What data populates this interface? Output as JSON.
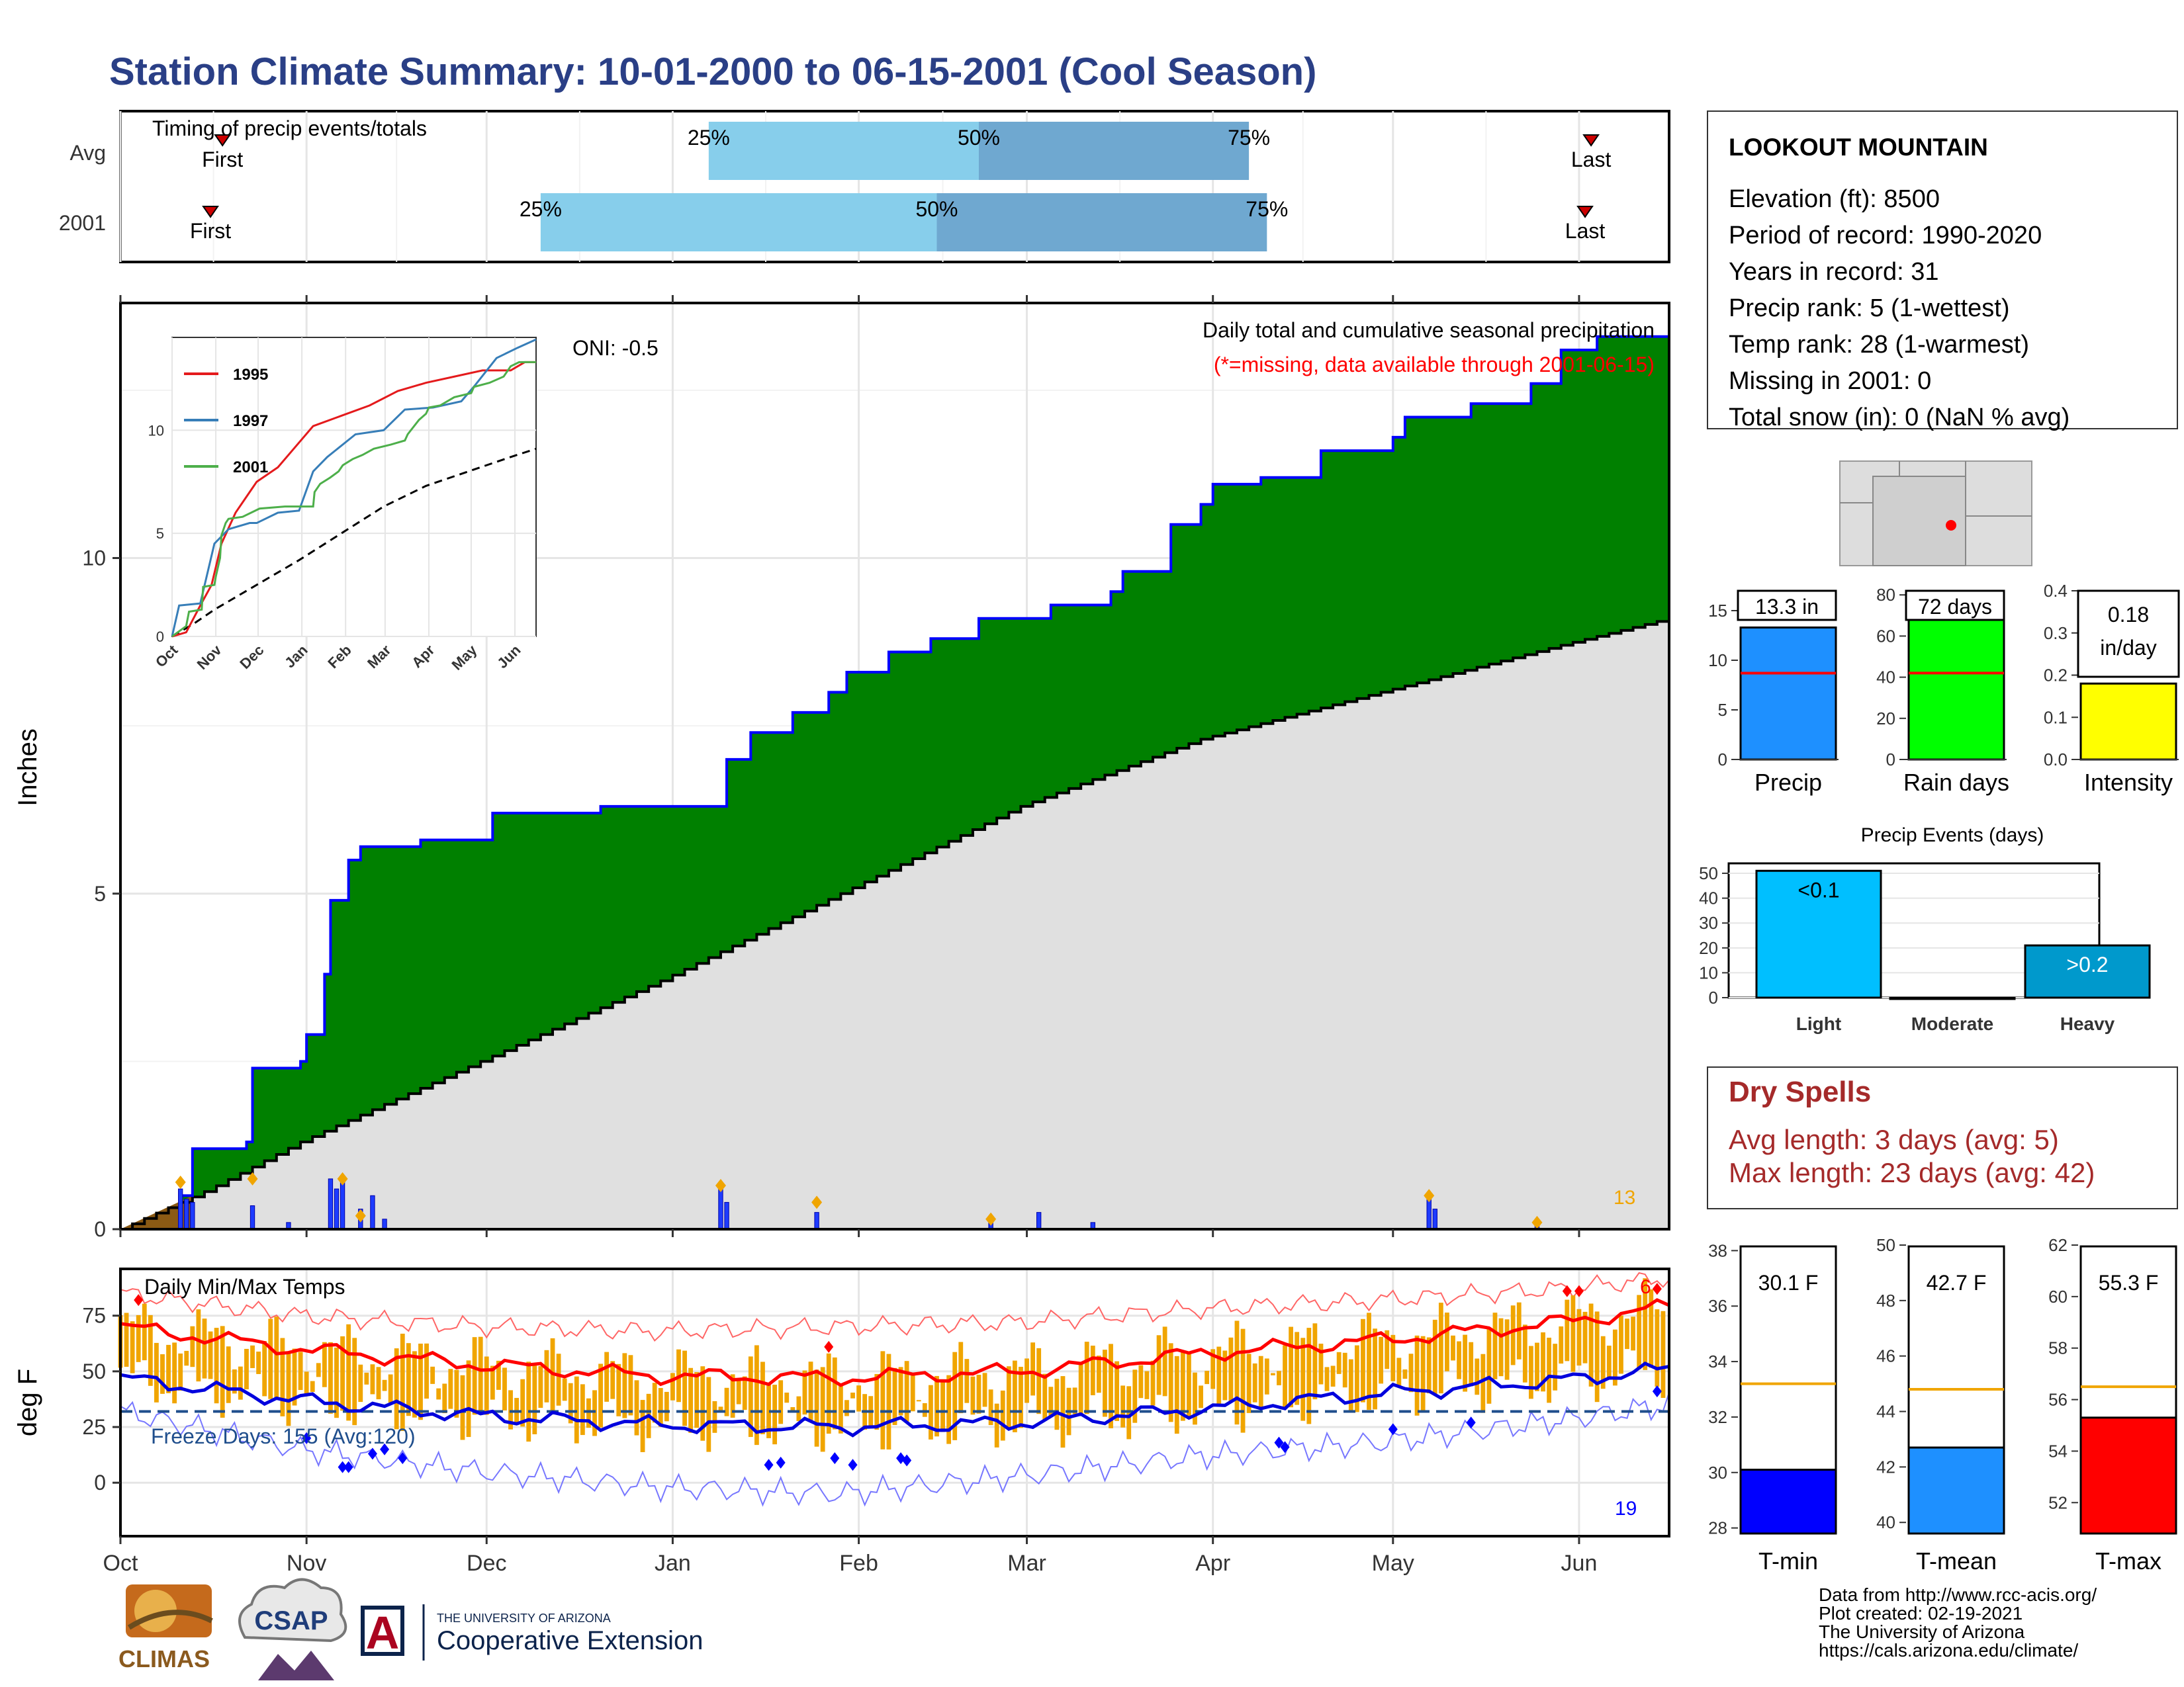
{
  "title": "Station Climate Summary: 10-01-2000 to 06-15-2001 (Cool Season)",
  "colors": {
    "title": "#2a3f86",
    "precip_fill": "#008000",
    "precip_line": "#0000ff",
    "avg_fill": "#e0e0e0",
    "bar_light": "#87ceeb",
    "bar_dark": "#6fa8d0",
    "orange": "#f0a500",
    "red": "#ff0000",
    "blue": "#0000ff",
    "dry_text": "#a52a2a"
  },
  "months": [
    "Oct",
    "Nov",
    "Dec",
    "Jan",
    "Feb",
    "Mar",
    "Apr",
    "May",
    "Jun"
  ],
  "timing": {
    "title": "Timing of precip events/totals",
    "rows": [
      "Avg",
      "2001"
    ],
    "first_label": "First",
    "last_label": "Last",
    "pct_labels": [
      "25%",
      "50%",
      "75%"
    ],
    "avg": {
      "first_day": 17,
      "p25": 98,
      "p50": 143,
      "p75": 188,
      "last_day": 245
    },
    "y2001": {
      "first_day": 15,
      "p25": 70,
      "p50": 136,
      "p75": 191,
      "last_day": 244
    }
  },
  "main": {
    "ylabel": "Inches",
    "oni": "ONI: -0.5",
    "note1": "Daily total and cumulative seasonal precipitation",
    "note2": "(*=missing, data available through 2001-06-15)",
    "extreme_count": "13",
    "yticks": [
      "0",
      "5",
      "10"
    ]
  },
  "inset": {
    "months": [
      "Oct",
      "Nov",
      "Dec",
      "Jan",
      "Feb",
      "Mar",
      "Apr",
      "May",
      "Jun"
    ],
    "yticks": [
      "0",
      "5",
      "10"
    ],
    "legend": [
      "1995",
      "1997",
      "2001"
    ]
  },
  "chart_data": [
    {
      "type": "area",
      "title": "Daily total and cumulative seasonal precipitation",
      "ylabel": "Inches",
      "ylim": [
        0,
        13.8
      ],
      "series": [
        {
          "name": "2001 cumulative",
          "points": [
            [
              0,
              0
            ],
            [
              10,
              0.5
            ],
            [
              12,
              1.2
            ],
            [
              21,
              1.3
            ],
            [
              22,
              2.4
            ],
            [
              30,
              2.5
            ],
            [
              31,
              2.9
            ],
            [
              34,
              3.8
            ],
            [
              35,
              4.9
            ],
            [
              38,
              5.5
            ],
            [
              40,
              5.7
            ],
            [
              50,
              5.8
            ],
            [
              62,
              6.2
            ],
            [
              80,
              6.3
            ],
            [
              100,
              6.3
            ],
            [
              101,
              7.0
            ],
            [
              105,
              7.4
            ],
            [
              112,
              7.7
            ],
            [
              118,
              8.0
            ],
            [
              121,
              8.3
            ],
            [
              128,
              8.6
            ],
            [
              135,
              8.8
            ],
            [
              143,
              9.1
            ],
            [
              155,
              9.3
            ],
            [
              165,
              9.5
            ],
            [
              167,
              9.8
            ],
            [
              175,
              10.5
            ],
            [
              180,
              10.8
            ],
            [
              182,
              11.1
            ],
            [
              190,
              11.2
            ],
            [
              200,
              11.6
            ],
            [
              212,
              11.8
            ],
            [
              214,
              12.1
            ],
            [
              225,
              12.3
            ],
            [
              235,
              12.6
            ],
            [
              240,
              13.1
            ],
            [
              246,
              13.3
            ],
            [
              258,
              13.3
            ]
          ]
        },
        {
          "name": "Average cumulative",
          "points": [
            [
              0,
              0
            ],
            [
              15,
              0.6
            ],
            [
              30,
              1.3
            ],
            [
              60,
              2.5
            ],
            [
              90,
              3.7
            ],
            [
              120,
              5.0
            ],
            [
              150,
              6.3
            ],
            [
              180,
              7.3
            ],
            [
              210,
              8.0
            ],
            [
              240,
              8.7
            ],
            [
              258,
              9.1
            ]
          ]
        }
      ],
      "daily_bars": [
        [
          10,
          0.6
        ],
        [
          11,
          0.45
        ],
        [
          12,
          0.4
        ],
        [
          22,
          0.35
        ],
        [
          28,
          0.1
        ],
        [
          35,
          0.75
        ],
        [
          36,
          0.6
        ],
        [
          37,
          0.75
        ],
        [
          40,
          0.3
        ],
        [
          42,
          0.5
        ],
        [
          44,
          0.15
        ],
        [
          100,
          0.6
        ],
        [
          101,
          0.4
        ],
        [
          116,
          0.25
        ],
        [
          145,
          0.15
        ],
        [
          153,
          0.25
        ],
        [
          162,
          0.1
        ],
        [
          218,
          0.5
        ],
        [
          219,
          0.3
        ],
        [
          236,
          0.1
        ]
      ],
      "extreme_count": 13
    },
    {
      "type": "bar",
      "title": "Daily Min/Max Temps",
      "ylabel": "deg F",
      "ylim": [
        -15,
        95
      ],
      "freeze_days": 155,
      "freeze_days_avg": 120,
      "series": [
        {
          "name": "Avg max",
          "points": [
            [
              0,
              70
            ],
            [
              30,
              60
            ],
            [
              60,
              53
            ],
            [
              90,
              48
            ],
            [
              120,
              47
            ],
            [
              150,
              50
            ],
            [
              180,
              58
            ],
            [
              210,
              64
            ],
            [
              240,
              72
            ],
            [
              258,
              79
            ]
          ]
        },
        {
          "name": "Avg min",
          "points": [
            [
              0,
              47
            ],
            [
              30,
              37
            ],
            [
              60,
              30
            ],
            [
              90,
              26
            ],
            [
              120,
              25
            ],
            [
              150,
              27
            ],
            [
              180,
              33
            ],
            [
              210,
              40
            ],
            [
              240,
              46
            ],
            [
              258,
              51
            ]
          ]
        },
        {
          "name": "Record max",
          "points": [
            [
              0,
              85
            ],
            [
              30,
              75
            ],
            [
              60,
              70
            ],
            [
              90,
              68
            ],
            [
              120,
              70
            ],
            [
              150,
              72
            ],
            [
              180,
              78
            ],
            [
              210,
              82
            ],
            [
              240,
              87
            ],
            [
              258,
              92
            ]
          ]
        },
        {
          "name": "Record min",
          "points": [
            [
              0,
              32
            ],
            [
              30,
              15
            ],
            [
              60,
              5
            ],
            [
              90,
              -2
            ],
            [
              120,
              -5
            ],
            [
              150,
              3
            ],
            [
              180,
              12
            ],
            [
              210,
              18
            ],
            [
              240,
              28
            ],
            [
              258,
              35
            ]
          ]
        }
      ],
      "counts": {
        "hot": 6,
        "cold": 19
      }
    },
    {
      "type": "bar",
      "categories": [
        "Precip",
        "Rain days",
        "Intensity"
      ],
      "values": [
        13.3,
        72,
        0.18
      ],
      "labels": [
        "13.3 in",
        "72 days",
        "0.18 in/day"
      ],
      "averages": [
        8.7,
        42,
        0.2
      ],
      "ylims": [
        [
          0,
          17
        ],
        [
          0,
          82
        ],
        [
          0,
          0.4
        ]
      ]
    },
    {
      "type": "bar",
      "title": "Precip Events (days)",
      "categories": [
        "Light",
        "Moderate",
        "Heavy"
      ],
      "values": [
        51,
        0,
        21
      ],
      "labels": [
        "<0.1",
        "",
        ">0.2"
      ],
      "ylim": [
        0,
        54
      ]
    },
    {
      "type": "bar",
      "categories": [
        "T-min",
        "T-mean",
        "T-max"
      ],
      "values": [
        30.1,
        42.7,
        55.3
      ],
      "labels": [
        "30.1 F",
        "42.7 F",
        "55.3 F"
      ],
      "averages": [
        33.2,
        44.8,
        56.5
      ],
      "ylims": [
        [
          27.8,
          38.2
        ],
        [
          39.6,
          50
        ],
        [
          50.8,
          62
        ]
      ]
    }
  ],
  "temps": {
    "title": "Daily Min/Max Temps",
    "ylabel": "deg F",
    "freeze": "Freeze Days: 155 (Avg:120)",
    "hot_count": "6",
    "cold_count": "19",
    "yticks": [
      "0",
      "25",
      "50",
      "75"
    ]
  },
  "station": {
    "name": "LOOKOUT MOUNTAIN",
    "lines": [
      "Elevation (ft): 8500",
      "Period of record: 1990-2020",
      "Years in record: 31",
      "Precip rank: 5 (1-wettest)",
      "Temp rank: 28 (1-warmest)",
      "Missing in 2001: 0",
      "Total snow (in): 0 (NaN % avg)"
    ]
  },
  "summary_bars": {
    "labels": [
      "Precip",
      "Rain days",
      "Intensity"
    ],
    "values": [
      "13.3 in",
      "72 days",
      "0.18"
    ],
    "intensity_unit": "in/day",
    "precip_ticks": [
      "0",
      "5",
      "10",
      "15"
    ],
    "rain_ticks": [
      "0",
      "20",
      "40",
      "60",
      "80"
    ],
    "int_ticks": [
      "0.0",
      "0.1",
      "0.2",
      "0.3",
      "0.4"
    ]
  },
  "events": {
    "title": "Precip Events (days)",
    "labels": [
      "Light",
      "Moderate",
      "Heavy"
    ],
    "values": [
      "<0.1",
      ">0.2"
    ],
    "ticks": [
      "0",
      "10",
      "20",
      "30",
      "40",
      "50"
    ]
  },
  "dry": {
    "title": "Dry Spells",
    "avg": "Avg length: 3 days (avg: 5)",
    "max": "Max length: 23 days (avg: 42)"
  },
  "temp_bars": {
    "labels": [
      "T-min",
      "T-mean",
      "T-max"
    ],
    "values": [
      "30.1 F",
      "42.7 F",
      "55.3 F"
    ],
    "tmin_ticks": [
      "28",
      "30",
      "32",
      "34",
      "36",
      "38"
    ],
    "tmean_ticks": [
      "40",
      "42",
      "44",
      "46",
      "48",
      "50"
    ],
    "tmax_ticks": [
      "52",
      "54",
      "56",
      "58",
      "60",
      "62"
    ]
  },
  "logos": {
    "climas": "CLIMAS",
    "csap": "CSAP",
    "ua_line1": "THE UNIVERSITY OF ARIZONA",
    "ua_line2": "Cooperative Extension",
    "ua_letter": "A"
  },
  "footer": [
    "Data from http://www.rcc-acis.org/",
    "Plot created: 02-19-2021",
    "The University of Arizona",
    "https://cals.arizona.edu/climate/"
  ]
}
